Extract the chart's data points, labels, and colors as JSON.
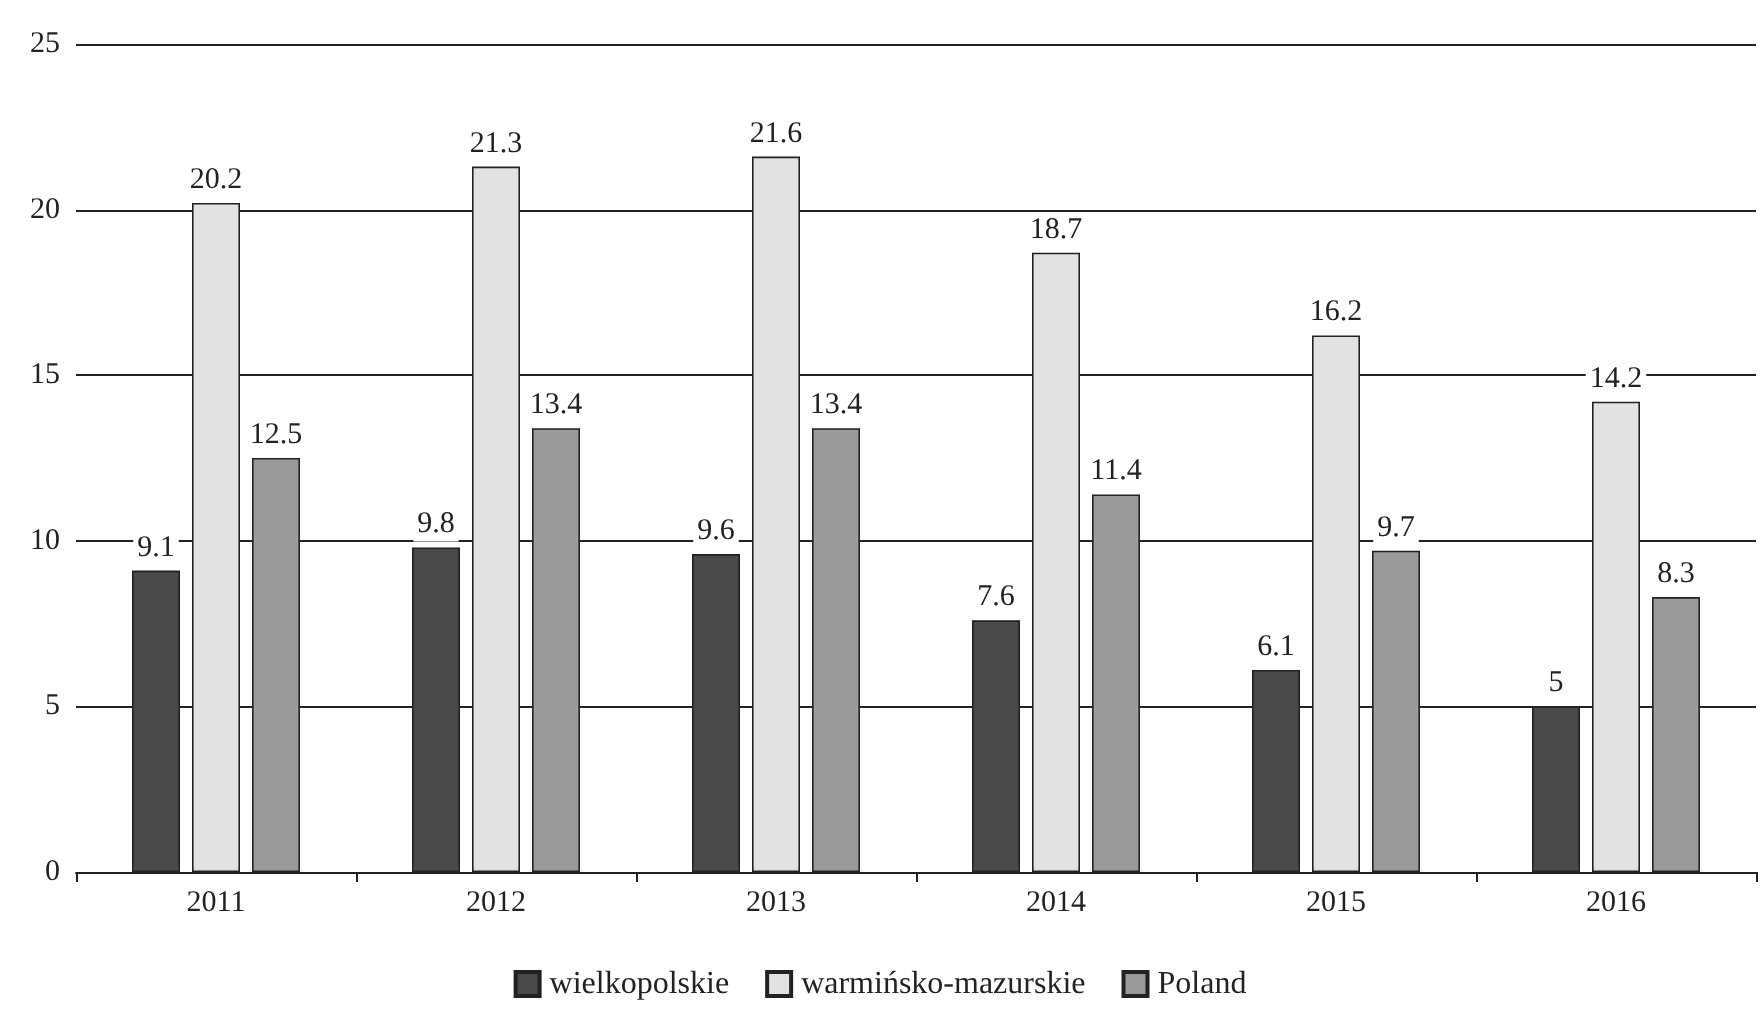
{
  "chart_data": {
    "type": "bar",
    "categories": [
      "2011",
      "2012",
      "2013",
      "2014",
      "2015",
      "2016"
    ],
    "series": [
      {
        "name": "wielkopolskie",
        "color": "#4a4a4a",
        "values": [
          9.1,
          9.8,
          9.6,
          7.6,
          6.1,
          5
        ]
      },
      {
        "name": "warmińsko-mazurskie",
        "color": "#e2e2e2",
        "values": [
          20.2,
          21.3,
          21.6,
          18.7,
          16.2,
          14.2
        ]
      },
      {
        "name": "Poland",
        "color": "#9a9a9a",
        "values": [
          12.5,
          13.4,
          13.4,
          11.4,
          9.7,
          8.3
        ]
      }
    ],
    "ylim": [
      0,
      25
    ],
    "yticks": [
      0,
      5,
      10,
      15,
      20,
      25
    ],
    "grid": "y",
    "legend": "bottom",
    "data_labels": true
  }
}
